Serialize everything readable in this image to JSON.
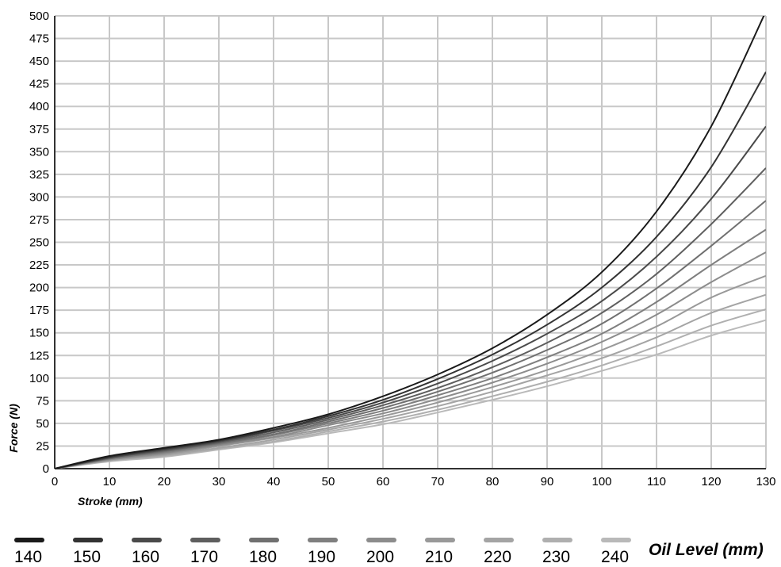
{
  "chart_data": {
    "type": "line",
    "title": "",
    "xlabel": "Stroke (mm)",
    "ylabel": "Force (N)",
    "xlim": [
      0,
      130
    ],
    "ylim": [
      0,
      500
    ],
    "x_ticks": [
      "0",
      "10",
      "20",
      "30",
      "40",
      "50",
      "60",
      "70",
      "80",
      "90",
      "100",
      "110",
      "120",
      "130"
    ],
    "y_ticks": [
      "0",
      "25",
      "50",
      "75",
      "100",
      "125",
      "150",
      "175",
      "200",
      "225",
      "250",
      "275",
      "300",
      "325",
      "350",
      "375",
      "400",
      "425",
      "450",
      "475",
      "500"
    ],
    "grid": true,
    "legend_title": "Oil Level (mm)",
    "legend_position": "bottom",
    "x": [
      0,
      10,
      20,
      30,
      40,
      50,
      60,
      70,
      80,
      90,
      100,
      110,
      120,
      130
    ],
    "series": [
      {
        "name": "140",
        "color": "#1a1a1a",
        "values": [
          0,
          14,
          23,
          32,
          45,
          60,
          80,
          104,
          133,
          170,
          217,
          284,
          378,
          505
        ]
      },
      {
        "name": "150",
        "color": "#333333",
        "values": [
          0,
          13,
          22,
          31,
          43,
          58,
          76,
          99,
          126,
          159,
          200,
          256,
          333,
          438
        ]
      },
      {
        "name": "160",
        "color": "#4a4a4a",
        "values": [
          0,
          12,
          21,
          30,
          42,
          56,
          73,
          94,
          119,
          149,
          185,
          234,
          298,
          378
        ]
      },
      {
        "name": "170",
        "color": "#5e5e5e",
        "values": [
          0,
          12,
          20,
          29,
          40,
          54,
          70,
          89,
          112,
          139,
          172,
          215,
          270,
          332
        ]
      },
      {
        "name": "180",
        "color": "#707070",
        "values": [
          0,
          11,
          19,
          28,
          38,
          52,
          67,
          85,
          106,
          131,
          160,
          199,
          246,
          296
        ]
      },
      {
        "name": "190",
        "color": "#7f7f7f",
        "values": [
          0,
          11,
          18,
          27,
          37,
          50,
          64,
          81,
          100,
          123,
          149,
          184,
          225,
          264
        ]
      },
      {
        "name": "200",
        "color": "#8c8c8c",
        "values": [
          0,
          10,
          17,
          26,
          35,
          48,
          61,
          77,
          95,
          116,
          140,
          170,
          206,
          239
        ]
      },
      {
        "name": "210",
        "color": "#999999",
        "values": [
          0,
          10,
          16,
          25,
          34,
          45,
          58,
          73,
          90,
          109,
          131,
          157,
          189,
          213
        ]
      },
      {
        "name": "220",
        "color": "#a4a4a4",
        "values": [
          0,
          9,
          15,
          23,
          32,
          43,
          55,
          69,
          85,
          103,
          122,
          145,
          172,
          192
        ]
      },
      {
        "name": "230",
        "color": "#afafaf",
        "values": [
          0,
          9,
          14,
          22,
          30,
          41,
          52,
          65,
          80,
          96,
          114,
          135,
          158,
          176
        ]
      },
      {
        "name": "240",
        "color": "#b9b9b9",
        "values": [
          0,
          8,
          13,
          21,
          29,
          39,
          49,
          62,
          76,
          91,
          108,
          126,
          147,
          164
        ]
      }
    ]
  }
}
